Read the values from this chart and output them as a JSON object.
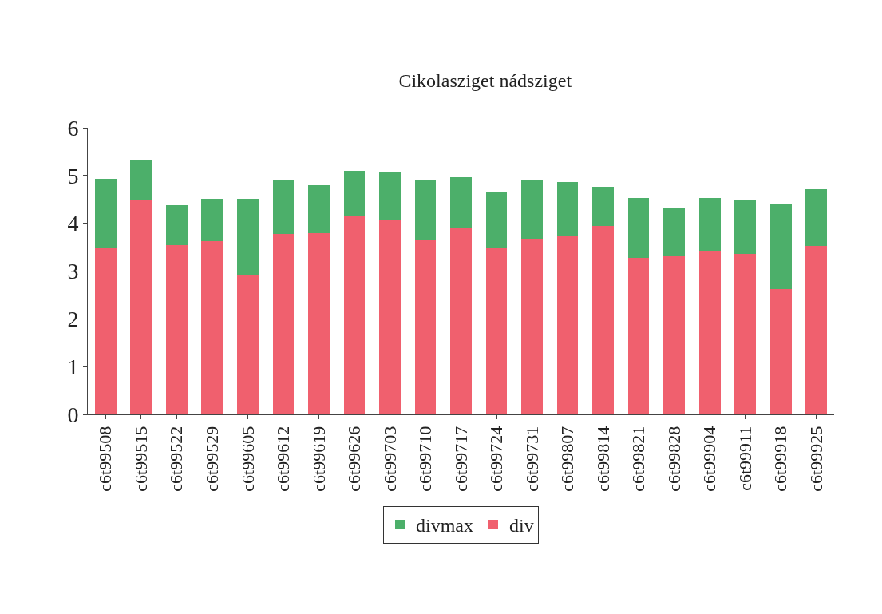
{
  "chart_data": {
    "type": "bar",
    "title": "Cikolasziget nádsziget",
    "stacked": true,
    "categories": [
      "c6t99508",
      "c6t99515",
      "c6t99522",
      "c6t99529",
      "c6t99605",
      "c6t99612",
      "c6t99619",
      "c6t99626",
      "c6t99703",
      "c6t99710",
      "c6t99717",
      "c6t99724",
      "c6t99731",
      "c6t99807",
      "c6t99814",
      "c6t99821",
      "c6t99828",
      "c6t99904",
      "c6t99911",
      "c6t99918",
      "c6t99925"
    ],
    "series": [
      {
        "name": "div",
        "color": "#f0606e",
        "values": [
          3.47,
          4.5,
          3.55,
          3.62,
          2.93,
          3.78,
          3.79,
          4.16,
          4.07,
          3.64,
          3.91,
          3.47,
          3.67,
          3.74,
          3.95,
          3.28,
          3.31,
          3.43,
          3.36,
          2.62,
          3.52
        ]
      },
      {
        "name": "divmax",
        "color": "#4caf6a",
        "values": [
          1.46,
          0.83,
          0.83,
          0.9,
          1.59,
          1.13,
          1.0,
          0.94,
          1.0,
          1.27,
          1.06,
          1.19,
          1.23,
          1.12,
          0.81,
          1.25,
          1.02,
          1.1,
          1.12,
          1.79,
          1.19
        ]
      }
    ],
    "ylim": [
      0,
      6
    ],
    "yticks": [
      0,
      1,
      2,
      3,
      4,
      5,
      6
    ],
    "grid": false,
    "legend": "bottom"
  }
}
